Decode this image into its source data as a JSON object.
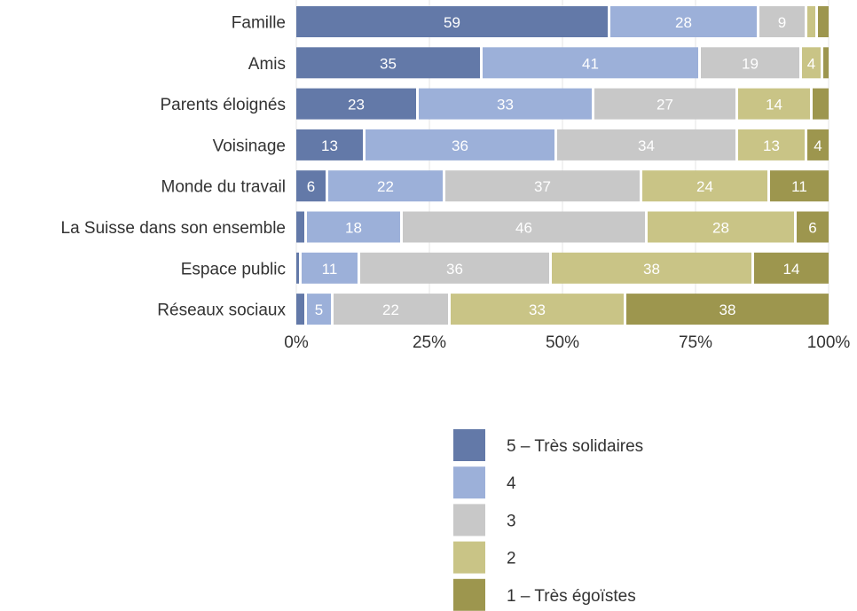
{
  "chart_data": {
    "type": "bar",
    "orientation": "horizontal",
    "stacked": true,
    "normalized": true,
    "categories": [
      "Famille",
      "Amis",
      "Parents éloignés",
      "Voisinage",
      "Monde du travail",
      "La Suisse dans son ensemble",
      "Espace public",
      "Réseaux sociaux"
    ],
    "series": [
      {
        "name": "5 – Très solidaires",
        "color": "#6379a8",
        "values": [
          59,
          35,
          23,
          13,
          6,
          2,
          1,
          2
        ],
        "labels": [
          "59",
          "35",
          "23",
          "13",
          "6",
          "",
          "",
          ""
        ]
      },
      {
        "name": "4",
        "color": "#9cb0d9",
        "values": [
          28,
          41,
          33,
          36,
          22,
          18,
          11,
          5
        ],
        "labels": [
          "28",
          "41",
          "33",
          "36",
          "22",
          "18",
          "11",
          "5"
        ]
      },
      {
        "name": "3",
        "color": "#c8c8c8",
        "values": [
          9,
          19,
          27,
          34,
          37,
          46,
          36,
          22
        ],
        "labels": [
          "9",
          "19",
          "27",
          "34",
          "37",
          "46",
          "36",
          "22"
        ]
      },
      {
        "name": "2",
        "color": "#c9c486",
        "values": [
          2,
          4,
          14,
          13,
          24,
          28,
          38,
          33
        ],
        "labels": [
          "",
          "4",
          "14",
          "13",
          "24",
          "28",
          "38",
          "33"
        ]
      },
      {
        "name": "1 – Très égoïstes",
        "color": "#9d964e",
        "values": [
          2,
          1,
          3,
          4,
          11,
          6,
          14,
          38
        ],
        "labels": [
          "",
          "",
          "",
          "4",
          "11",
          "6",
          "14",
          "38"
        ]
      }
    ],
    "xticks": [
      "0%",
      "25%",
      "50%",
      "75%",
      "100%"
    ],
    "xlim": [
      0,
      100
    ],
    "grid": true,
    "legend_position": "bottom"
  }
}
